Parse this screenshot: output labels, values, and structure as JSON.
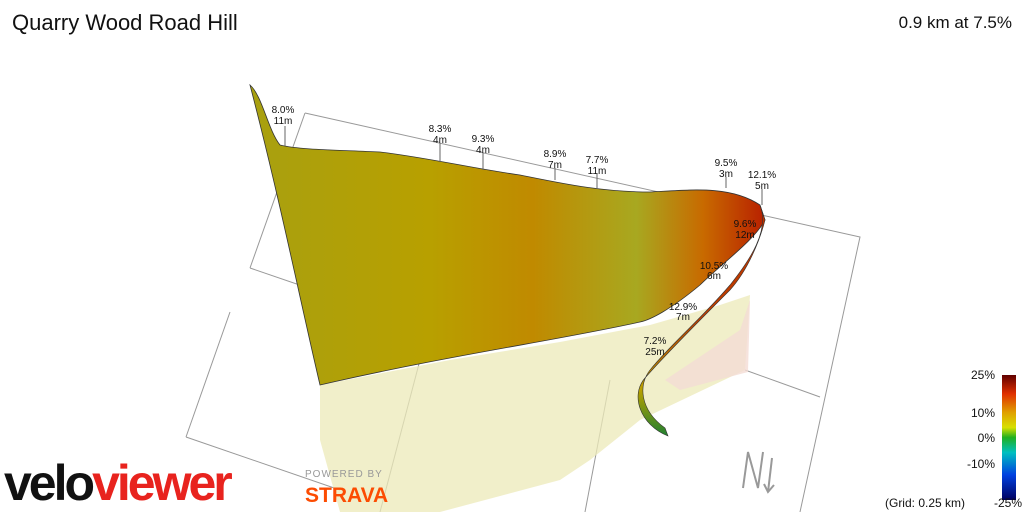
{
  "header": {
    "title": "Quarry Wood Road Hill",
    "summary": "0.9 km at 7.5%"
  },
  "annotations": [
    {
      "grade": "8.0%",
      "length": "11m"
    },
    {
      "grade": "8.3%",
      "length": "4m"
    },
    {
      "grade": "9.3%",
      "length": "4m"
    },
    {
      "grade": "8.9%",
      "length": "7m"
    },
    {
      "grade": "7.7%",
      "length": "11m"
    },
    {
      "grade": "9.5%",
      "length": "3m"
    },
    {
      "grade": "12.1%",
      "length": "5m"
    },
    {
      "grade": "9.6%",
      "length": "12m"
    },
    {
      "grade": "10.5%",
      "length": "6m"
    },
    {
      "grade": "12.9%",
      "length": "7m"
    },
    {
      "grade": "7.2%",
      "length": "25m"
    }
  ],
  "legend": {
    "ticks": [
      "25%",
      "10%",
      "0%",
      "-10%",
      "-25%"
    ],
    "grid_note": "(Grid: 0.25 km)"
  },
  "branding": {
    "logo_a": "velo",
    "logo_b": "viewer",
    "powered": "POWERED BY",
    "partner": "STRAVA"
  }
}
